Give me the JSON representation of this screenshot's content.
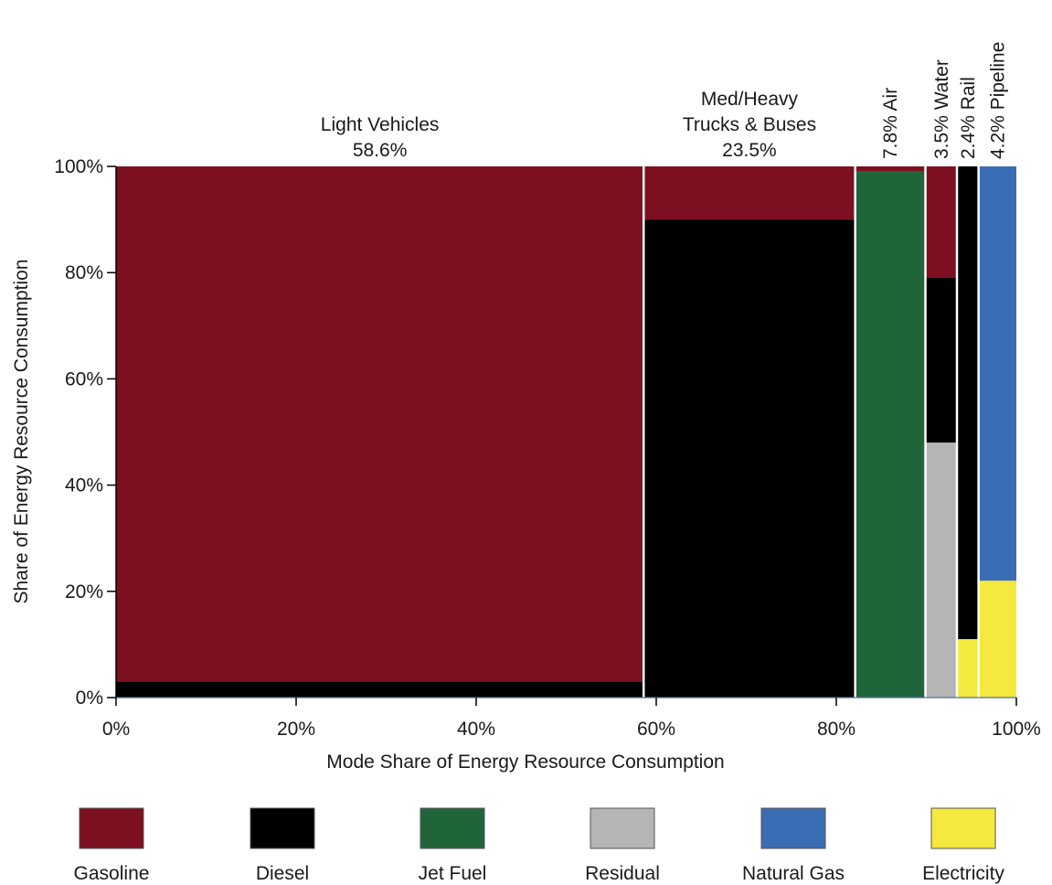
{
  "chart_data": {
    "type": "bar",
    "subtype": "marimekko",
    "title": "",
    "xlabel": "Mode Share of Energy Resource Consumption",
    "ylabel": "Share of Energy Resource Consumption",
    "xlim": [
      0,
      100
    ],
    "ylim": [
      0,
      100
    ],
    "x_ticks": [
      "0%",
      "20%",
      "40%",
      "60%",
      "80%",
      "100%"
    ],
    "y_ticks": [
      "0%",
      "20%",
      "40%",
      "60%",
      "80%",
      "100%"
    ],
    "grid": false,
    "legend_position": "bottom",
    "fuels": [
      {
        "name": "Gasoline",
        "color": "#7d1020"
      },
      {
        "name": "Diesel",
        "color": "#000000"
      },
      {
        "name": "Jet Fuel",
        "color": "#20653a"
      },
      {
        "name": "Residual",
        "color": "#b5b5b5"
      },
      {
        "name": "Natural Gas",
        "color": "#3a6db3"
      },
      {
        "name": "Electricity",
        "color": "#f5e83e"
      }
    ],
    "modes": [
      {
        "label_lines": [
          "Light Vehicles",
          "58.6%"
        ],
        "label_orientation": "horizontal",
        "width": 58.6,
        "segments": [
          {
            "fuel": "Diesel",
            "value": 3
          },
          {
            "fuel": "Gasoline",
            "value": 97
          }
        ]
      },
      {
        "label_lines": [
          "Med/Heavy",
          "Trucks & Buses",
          "23.5%"
        ],
        "label_orientation": "horizontal",
        "width": 23.5,
        "segments": [
          {
            "fuel": "Diesel",
            "value": 90
          },
          {
            "fuel": "Gasoline",
            "value": 10
          }
        ]
      },
      {
        "label_lines": [
          "7.8% Air"
        ],
        "label_orientation": "vertical",
        "width": 7.8,
        "segments": [
          {
            "fuel": "Jet Fuel",
            "value": 99
          },
          {
            "fuel": "Gasoline",
            "value": 1
          }
        ]
      },
      {
        "label_lines": [
          "3.5% Water"
        ],
        "label_orientation": "vertical",
        "width": 3.5,
        "segments": [
          {
            "fuel": "Residual",
            "value": 48
          },
          {
            "fuel": "Diesel",
            "value": 31
          },
          {
            "fuel": "Gasoline",
            "value": 21
          }
        ]
      },
      {
        "label_lines": [
          "2.4% Rail"
        ],
        "label_orientation": "vertical",
        "width": 2.4,
        "segments": [
          {
            "fuel": "Electricity",
            "value": 11
          },
          {
            "fuel": "Diesel",
            "value": 89
          }
        ]
      },
      {
        "label_lines": [
          "4.2% Pipeline"
        ],
        "label_orientation": "vertical",
        "width": 4.2,
        "segments": [
          {
            "fuel": "Electricity",
            "value": 22
          },
          {
            "fuel": "Natural Gas",
            "value": 78
          }
        ]
      }
    ]
  }
}
